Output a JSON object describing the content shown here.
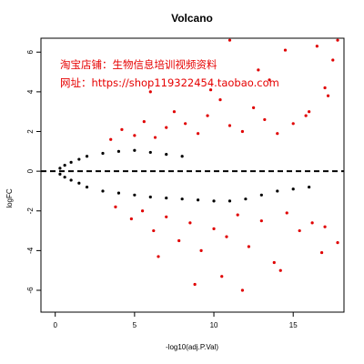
{
  "chart_data": {
    "type": "scatter",
    "title": "Volcano",
    "xlabel": "-log10(adj.P.Val)",
    "ylabel": "logFC",
    "xlim": [
      -0.9,
      18.2
    ],
    "ylim": [
      -7.1,
      6.7
    ],
    "x_ticks": [
      0,
      5,
      10,
      15
    ],
    "y_ticks": [
      -6,
      -4,
      -2,
      0,
      2,
      4,
      6
    ],
    "reference_line": {
      "y": 0,
      "style": "dashed"
    },
    "colors": {
      "non_significant": "#000000",
      "significant": "#e00000"
    },
    "grid": false,
    "legend": "none",
    "series": [
      {
        "name": "",
        "color": "#000000",
        "points": [
          [
            0.3,
            0.15
          ],
          [
            0.6,
            0.3
          ],
          [
            1.0,
            0.45
          ],
          [
            1.5,
            0.6
          ],
          [
            2.0,
            0.75
          ],
          [
            3.0,
            0.9
          ],
          [
            4.0,
            1.0
          ],
          [
            5.0,
            1.05
          ],
          [
            6.0,
            0.95
          ],
          [
            7.0,
            0.85
          ],
          [
            8.0,
            0.75
          ],
          [
            0.3,
            -0.15
          ],
          [
            0.6,
            -0.3
          ],
          [
            1.0,
            -0.45
          ],
          [
            1.5,
            -0.6
          ],
          [
            2.0,
            -0.8
          ],
          [
            3.0,
            -1.0
          ],
          [
            4.0,
            -1.1
          ],
          [
            5.0,
            -1.2
          ],
          [
            6.0,
            -1.3
          ],
          [
            7.0,
            -1.35
          ],
          [
            8.0,
            -1.4
          ],
          [
            9.0,
            -1.45
          ],
          [
            10.0,
            -1.5
          ],
          [
            11.0,
            -1.5
          ],
          [
            12.0,
            -1.4
          ],
          [
            13.0,
            -1.2
          ],
          [
            14.0,
            -1.0
          ],
          [
            15.0,
            -0.9
          ],
          [
            16.0,
            -0.8
          ]
        ]
      },
      {
        "name": "",
        "color": "#e00000",
        "points": [
          [
            3.5,
            1.6
          ],
          [
            4.2,
            2.1
          ],
          [
            5.0,
            1.8
          ],
          [
            5.6,
            2.5
          ],
          [
            6.3,
            1.7
          ],
          [
            7.0,
            2.2
          ],
          [
            7.5,
            3.0
          ],
          [
            8.2,
            2.4
          ],
          [
            9.0,
            1.9
          ],
          [
            9.6,
            2.8
          ],
          [
            10.4,
            3.6
          ],
          [
            11.0,
            2.3
          ],
          [
            11.8,
            2.0
          ],
          [
            12.5,
            3.2
          ],
          [
            13.2,
            2.6
          ],
          [
            14.0,
            1.9
          ],
          [
            15.0,
            2.4
          ],
          [
            16.0,
            3.0
          ],
          [
            17.0,
            4.2
          ],
          [
            17.5,
            5.6
          ],
          [
            17.8,
            6.6
          ],
          [
            16.5,
            6.3
          ],
          [
            14.5,
            6.1
          ],
          [
            12.8,
            5.1
          ],
          [
            11.0,
            6.6
          ],
          [
            6.0,
            4.0
          ],
          [
            15.8,
            2.8
          ],
          [
            17.2,
            3.8
          ],
          [
            13.5,
            4.6
          ],
          [
            9.8,
            4.1
          ],
          [
            3.8,
            -1.8
          ],
          [
            4.8,
            -2.4
          ],
          [
            5.5,
            -2.0
          ],
          [
            6.2,
            -3.0
          ],
          [
            7.0,
            -2.3
          ],
          [
            7.8,
            -3.5
          ],
          [
            8.5,
            -2.6
          ],
          [
            9.2,
            -4.0
          ],
          [
            10.0,
            -2.9
          ],
          [
            10.8,
            -3.3
          ],
          [
            11.5,
            -2.2
          ],
          [
            12.2,
            -3.8
          ],
          [
            13.0,
            -2.5
          ],
          [
            13.8,
            -4.6
          ],
          [
            14.6,
            -2.1
          ],
          [
            15.4,
            -3.0
          ],
          [
            16.2,
            -2.6
          ],
          [
            17.0,
            -2.8
          ],
          [
            17.8,
            -3.6
          ],
          [
            11.8,
            -6.0
          ],
          [
            10.5,
            -5.3
          ],
          [
            8.8,
            -5.7
          ],
          [
            14.2,
            -5.0
          ],
          [
            16.8,
            -4.1
          ],
          [
            6.5,
            -4.3
          ]
        ]
      }
    ]
  },
  "watermark": {
    "line1": "淘宝店铺：生物信息培训视频资料",
    "line2": "网址：https://shop119322454.taobao.com"
  }
}
